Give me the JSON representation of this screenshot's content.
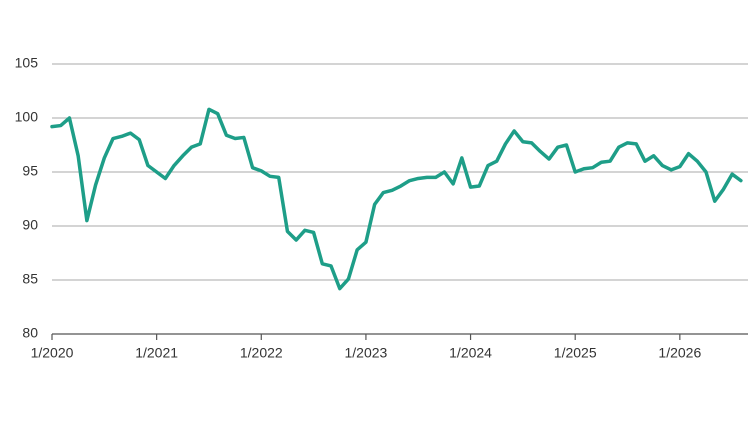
{
  "chart_data": {
    "type": "line",
    "categories": [
      "1/2020",
      null,
      null,
      null,
      null,
      null,
      null,
      null,
      null,
      null,
      null,
      null,
      "1/2021",
      null,
      null,
      null,
      null,
      null,
      null,
      null,
      null,
      null,
      null,
      null,
      "1/2022",
      null,
      null,
      null,
      null,
      null,
      null,
      null,
      null,
      null,
      null,
      null,
      "1/2023",
      null,
      null,
      null,
      null,
      null,
      null,
      null,
      null,
      null,
      null,
      null,
      "1/2024",
      null,
      null,
      null,
      null,
      null,
      null,
      null,
      null,
      null,
      null,
      null,
      "1/2025",
      null,
      null,
      null,
      null,
      null,
      null,
      null,
      null,
      null,
      null,
      null,
      "1/2026",
      null,
      null,
      null,
      null,
      null,
      null,
      null
    ],
    "values": [
      99.2,
      99.3,
      100,
      96.5,
      90.5,
      93.8,
      96.3,
      98.1,
      98.3,
      98.6,
      98.0,
      95.6,
      95.0,
      94.4,
      95.6,
      96.5,
      97.3,
      97.6,
      100.8,
      100.4,
      98.4,
      98.1,
      98.2,
      95.4,
      95.1,
      94.6,
      94.5,
      89.5,
      88.7,
      89.6,
      89.4,
      86.5,
      86.3,
      84.2,
      85.1,
      87.8,
      88.5,
      92.0,
      93.1,
      93.3,
      93.7,
      94.2,
      94.4,
      94.5,
      94.5,
      95.0,
      93.9,
      96.3,
      93.6,
      93.7,
      95.6,
      96.0,
      97.6,
      98.8,
      97.8,
      97.7,
      96.9,
      96.2,
      97.3,
      97.5,
      95.0,
      95.3,
      95.4,
      95.9,
      96.0,
      97.3,
      97.7,
      97.6,
      96.0,
      96.5,
      95.6,
      95.2,
      95.5,
      96.7,
      96.0,
      95.0,
      92.3,
      93.4,
      94.8,
      94.2
    ],
    "color": "#1e9e88",
    "ylim": [
      80,
      105
    ],
    "yticks": [
      80,
      85,
      90,
      95,
      100,
      105
    ],
    "grid": true
  }
}
